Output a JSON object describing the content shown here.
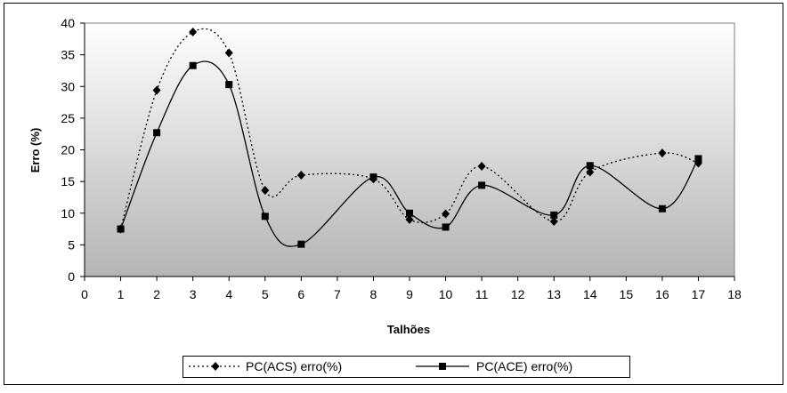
{
  "chart_data": {
    "type": "line",
    "title": "",
    "xlabel": "Talhões",
    "ylabel": "Erro (%)",
    "xlim": [
      0,
      18
    ],
    "ylim": [
      0,
      40
    ],
    "x_ticks": [
      0,
      1,
      2,
      3,
      4,
      5,
      6,
      7,
      8,
      9,
      10,
      11,
      12,
      13,
      14,
      15,
      16,
      17,
      18
    ],
    "y_ticks": [
      0,
      5,
      10,
      15,
      20,
      25,
      30,
      35,
      40
    ],
    "grid": false,
    "legend_position": "bottom",
    "background": "vertical gradient gray to white",
    "series": [
      {
        "name": "PC(ACS) erro(%)",
        "line_style": "dotted",
        "marker": "diamond",
        "color": "#000000",
        "x": [
          1,
          2,
          3,
          4,
          5,
          6,
          8,
          9,
          10,
          11,
          13,
          14,
          16,
          17
        ],
        "y": [
          7.5,
          29.4,
          38.6,
          35.3,
          13.6,
          16.0,
          15.4,
          9.0,
          9.9,
          17.4,
          8.7,
          16.5,
          19.5,
          17.9
        ]
      },
      {
        "name": "PC(ACE) erro(%)",
        "line_style": "solid",
        "marker": "square",
        "color": "#000000",
        "x": [
          1,
          2,
          3,
          4,
          5,
          6,
          8,
          9,
          10,
          11,
          13,
          14,
          16,
          17
        ],
        "y": [
          7.5,
          22.7,
          33.3,
          30.3,
          9.5,
          5.1,
          15.7,
          10.0,
          7.8,
          14.4,
          9.7,
          17.5,
          10.7,
          18.6
        ]
      }
    ]
  }
}
